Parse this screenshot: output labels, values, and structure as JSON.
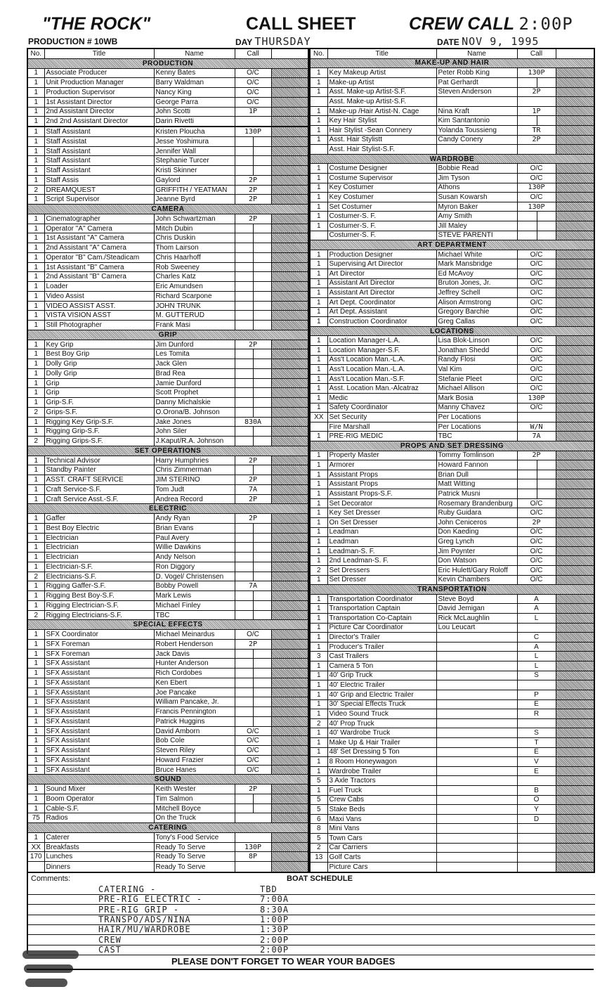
{
  "header": {
    "title": "\"THE ROCK\"",
    "production_label": "PRODUCTION # 10WB",
    "sheet_title": "CALL SHEET",
    "day_label": "DAY",
    "day_value": "THURSDAY",
    "crew_call_label": "CREW CALL",
    "crew_call_value": "2:00P",
    "date_label": "DATE",
    "date_value": "NOV 9, 1995"
  },
  "columns": {
    "no": "No.",
    "title": "Title",
    "name": "Name",
    "call": "Call"
  },
  "left": [
    {
      "section": "PRODUCTION",
      "rows": [
        [
          "1",
          "Associate Producer",
          "Kenny Bates",
          "O/C"
        ],
        [
          "1",
          "Unit Production Manager",
          "Barry Waldman",
          "O/C"
        ],
        [
          "1",
          "Production Supervisor",
          "Nancy King",
          "O/C"
        ],
        [
          "1",
          "1st Assistant Director",
          "George Parra",
          "O/C"
        ],
        [
          "1",
          "2nd Assistant Director",
          "John Scotti",
          "1P"
        ],
        [
          "1",
          "2nd 2nd Assistant Director",
          "Darin Rivetti",
          ""
        ],
        [
          "",
          "",
          "",
          ""
        ],
        [
          "1",
          "Staff Assistant",
          "Kristen Ploucha",
          "130P"
        ],
        [
          "1",
          "Staff Assistat",
          "Jesse Yoshimura",
          "|"
        ],
        [
          "1",
          "Staff Assistant",
          "Jennifer Wall",
          "|"
        ],
        [
          "1",
          "Staff Assistant",
          "Stephanie Turcer",
          "|"
        ],
        [
          "1",
          "Staff Assistant",
          "Kristi Skinner",
          "|"
        ],
        [
          "1",
          "Staff Assis",
          "Gaylord",
          "2P"
        ],
        [
          "2",
          "DREAMQUEST",
          "GRIFFITH / YEATMAN",
          "2P"
        ],
        [
          "1",
          "Script Supervisor",
          "Jeanne Byrd",
          "2P"
        ]
      ]
    },
    {
      "section": "CAMERA",
      "rows": [
        [
          "1",
          "Cinematographer",
          "John Schwartzman",
          "2P"
        ],
        [
          "1",
          "Operator \"A\" Camera",
          "Mitch Dubin",
          "|"
        ],
        [
          "1",
          "1st Assistant \"A\" Camera",
          "Chris Duskin",
          "|"
        ],
        [
          "1",
          "2nd Assistant \"A\" Camera",
          "Thom Lairson",
          "|"
        ],
        [
          "1",
          "Operator \"B\" Cam./Steadicam",
          "Chris Haarhoff",
          "|"
        ],
        [
          "1",
          "1st Assistant \"B\" Camera",
          "Rob Sweeney",
          "|"
        ],
        [
          "1",
          "2nd Assistant \"B\" Camera",
          "Charles Katz",
          "|"
        ],
        [
          "1",
          "Loader",
          "Eric Amundsen",
          "|"
        ],
        [
          "1",
          "Video Assist",
          "Richard Scarpone",
          "|"
        ],
        [
          "1",
          "VIDEO ASSIST ASST.",
          "JOHN TRUNK",
          "|"
        ],
        [
          "1",
          "VISTA VISION ASST",
          "M. GUTTERUD",
          "|"
        ],
        [
          "1",
          "Still Photographer",
          "Frank Masi",
          "|"
        ]
      ]
    },
    {
      "section": "GRIP",
      "rows": [
        [
          "1",
          "Key Grip",
          "Jim Dunford",
          "2P"
        ],
        [
          "1",
          "Best Boy Grip",
          "Les Tomita",
          "|"
        ],
        [
          "1",
          "Dolly Grip",
          "Jack Glen",
          "|"
        ],
        [
          "1",
          "Dolly Grip",
          "Brad Rea",
          "|"
        ],
        [
          "1",
          "Grip",
          "Jamie Dunford",
          "|"
        ],
        [
          "1",
          "Grip",
          "Scott Prophet",
          "|"
        ],
        [
          "1",
          "Grip-S.F.",
          "Danny Michalskie",
          "|"
        ],
        [
          "2",
          "Grips-S.F.",
          "O.Orona/B. Johnson",
          "|"
        ],
        [
          "1",
          "Rigging Key Grip-S.F.",
          "Jake Jones",
          "830A"
        ],
        [
          "1",
          "Rigging Grip-S.F.",
          "John Siler",
          "|"
        ],
        [
          "2",
          "Rigging Grips-S.F.",
          "J.Kaput/R.A. Johnson",
          "|"
        ]
      ]
    },
    {
      "section": "SET OPERATIONS",
      "rows": [
        [
          "1",
          "Technical Advisor",
          "Harry Humphries",
          "2P"
        ],
        [
          "1",
          "Standby Painter",
          "Chris Zimmerman",
          "|"
        ],
        [
          "1",
          "ASST. CRAFT SERVICE",
          "JIM STERINO",
          "2P"
        ],
        [
          "1",
          "Craft Service-S.F.",
          "Tom Judt",
          "7A"
        ],
        [
          "1",
          "Craft Service Asst.-S.F.",
          "Andrea Record",
          "2P"
        ]
      ]
    },
    {
      "section": "ELECTRIC",
      "rows": [
        [
          "1",
          "Gaffer",
          "Andy Ryan",
          "2P"
        ],
        [
          "1",
          "Best Boy Electric",
          "Brian Evans",
          "|"
        ],
        [
          "1",
          "Electrician",
          "Paul Avery",
          "|"
        ],
        [
          "1",
          "Electrician",
          "Willie Dawkins",
          "|"
        ],
        [
          "1",
          "Electrician",
          "Andy Nelson",
          "|"
        ],
        [
          "1",
          "Electrician-S.F.",
          "Ron Diggory",
          "|"
        ],
        [
          "2",
          "Electricians-S.F.",
          "D. Vogel/ Christensen",
          "|"
        ],
        [
          "1",
          "Rigging Gaffer-S.F.",
          "Bobby Powell",
          "7A"
        ],
        [
          "1",
          "Rigging Best Boy-S.F.",
          "Mark Lewis",
          "|"
        ],
        [
          "1",
          "Rigging Electrician-S.F.",
          "Michael Finley",
          "|"
        ],
        [
          "2",
          "Rigging Electricians-S.F.",
          "TBC",
          "|"
        ]
      ]
    },
    {
      "section": "SPECIAL EFFECTS",
      "rows": [
        [
          "1",
          "SFX Coordinator",
          "Michael Meinardus",
          "O/C"
        ],
        [
          "1",
          "SFX Foreman",
          "Robert Henderson",
          "2P"
        ],
        [
          "1",
          "SFX Foreman",
          "Jack Davis",
          "|"
        ],
        [
          "1",
          "SFX Assistant",
          "Hunter Anderson",
          "|"
        ],
        [
          "1",
          "SFX Assistant",
          "Rich Cordobes",
          "|"
        ],
        [
          "1",
          "SFX Assistant",
          "Ken Ebert",
          "|"
        ],
        [
          "1",
          "SFX Assistant",
          "Joe Pancake",
          "|"
        ],
        [
          "1",
          "SFX Assistant",
          "William Pancake, Jr.",
          "|"
        ],
        [
          "1",
          "SFX Assistant",
          "Francis Pennington",
          "|"
        ],
        [
          "1",
          "SFX Assistant",
          "Patrick Huggins",
          "|"
        ],
        [
          "1",
          "SFX Assistant",
          "David Amborn",
          "O/C"
        ],
        [
          "1",
          "SFX Assistant",
          "Bob Cole",
          "O/C"
        ],
        [
          "1",
          "SFX Assistant",
          "Steven Riley",
          "O/C"
        ],
        [
          "1",
          "SFX Assistant",
          "Howard Frazier",
          "O/C"
        ],
        [
          "1",
          "SFX Assistant",
          "Bruce Hanes",
          "O/C"
        ]
      ]
    },
    {
      "section": "SOUND",
      "rows": [
        [
          "1",
          "Sound Mixer",
          "Keith Wester",
          "2P"
        ],
        [
          "1",
          "Boom Operator",
          "Tim Salmon",
          "|"
        ],
        [
          "1",
          "Cable-S.F.",
          "Mitchell Boyce",
          "|"
        ],
        [
          "75",
          "Radios",
          "On the Truck",
          ""
        ]
      ]
    },
    {
      "section": "CATERING",
      "rows": [
        [
          "1",
          "Caterer",
          "Tony's Food Service",
          ""
        ],
        [
          "XX",
          "Breakfasts",
          "Ready To Serve",
          "130P"
        ],
        [
          "170",
          "Lunches",
          "Ready To Serve",
          "8P"
        ],
        [
          "",
          "Dinners",
          "Ready To Serve",
          ""
        ]
      ]
    }
  ],
  "right": [
    {
      "section": "MAKE-UP AND HAIR",
      "rows": [
        [
          "1",
          "Key Makeup Artist",
          "Peter Robb King",
          "130P"
        ],
        [
          "1",
          "Make-up Artist",
          "Pat Gerhardt",
          "|"
        ],
        [
          "1",
          "Asst. Make-up Artist-S.F.",
          "Steven Anderson",
          "2P"
        ],
        [
          "",
          "Asst. Make-up Artist-S.F.",
          "",
          ""
        ],
        [
          "1",
          "Make-up /Hair Artist-N. Cage",
          "Nina Kraft",
          "1P"
        ],
        [
          "1",
          "Key Hair Stylist",
          "Kim Santantonio",
          "|"
        ],
        [
          "1",
          "Hair Stylist -Sean Connery",
          "Yolanda Toussieng",
          "TR"
        ],
        [
          "1",
          "Asst. Hair Stylistt",
          "Candy Conery",
          "2P"
        ],
        [
          "",
          "Asst. Hair Stylist-S.F.",
          "",
          ""
        ]
      ]
    },
    {
      "section": "WARDROBE",
      "rows": [
        [
          "1",
          "Costume Designer",
          "Bobbie Read",
          "O/C"
        ],
        [
          "1",
          "Costume Supervisor",
          "Jim Tyson",
          "O/C"
        ],
        [
          "1",
          "Key Costumer",
          "Athons",
          "130P"
        ],
        [
          "1",
          "Key Costumer",
          "Susan Kowarsh",
          "O/C"
        ],
        [
          "1",
          "Set Costumer",
          "Myron Baker",
          "130P"
        ],
        [
          "1",
          "Costumer-S. F.",
          "Amy Smith",
          "|"
        ],
        [
          "1",
          "Costumer-S. F.",
          "Jill Maley",
          "|"
        ],
        [
          "",
          "Costumer-S. F.",
          "STEVE PARENTI",
          "|"
        ]
      ]
    },
    {
      "section": "ART DEPARTMENT",
      "rows": [
        [
          "1",
          "Production Designer",
          "Michael White",
          "O/C"
        ],
        [
          "1",
          "Supervising Art Director",
          "Mark Mansbridge",
          "O/C"
        ],
        [
          "1",
          "Art Director",
          "Ed McAvoy",
          "O/C"
        ],
        [
          "1",
          "Assistant Art Director",
          "Bruton Jones, Jr.",
          "O/C"
        ],
        [
          "1",
          "Assistant Art Director",
          "Jeffrey Schell",
          "O/C"
        ],
        [
          "1",
          "Art Dept. Coordinator",
          "Alison Armstrong",
          "O/C"
        ],
        [
          "1",
          "Art Dept. Assistant",
          "Gregory Barchie",
          "O/C"
        ],
        [
          "1",
          "Construction Coordinator",
          "Greg Callas",
          "O/C"
        ]
      ]
    },
    {
      "section": "LOCATIONS",
      "rows": [
        [
          "1",
          "Location Manager-L.A.",
          "Lisa Blok-Linson",
          "O/C"
        ],
        [
          "1",
          "Location Manager-S.F.",
          "Jonathan Shedd",
          "O/C"
        ],
        [
          "1",
          "Ass't Location Man.-L.A.",
          "Randy Flosi",
          "O/C"
        ],
        [
          "1",
          "Ass't Location Man.-L.A.",
          "Val Kim",
          "O/C"
        ],
        [
          "1",
          "Ass't Location Man.-S.F.",
          "Stefanie Pleet",
          "O/C"
        ],
        [
          "1",
          "Asst. Location Man.-Alcatraz",
          "Michael Allison",
          "O/C"
        ],
        [
          "1",
          "Medic",
          "Mark Bosia",
          "130P"
        ],
        [
          "1",
          "Safety Coordinator",
          "Manny Chavez",
          "O/C"
        ],
        [
          "XX",
          "Set Security",
          "Per Locations",
          ""
        ],
        [
          "",
          "Fire Marshall",
          "Per Locations",
          "W/N"
        ],
        [
          "1",
          "PRE-RIG MEDIC",
          "TBC",
          "7A"
        ]
      ]
    },
    {
      "section": "PROPS AND SET DRESSING",
      "rows": [
        [
          "1",
          "Property Master",
          "Tommy Tomlinson",
          "2P"
        ],
        [
          "1",
          "Armorer",
          "Howard Fannon",
          "|"
        ],
        [
          "1",
          "Assistant Props",
          "Brian Dull",
          "|"
        ],
        [
          "1",
          "Assistant Props",
          "Matt Witting",
          "|"
        ],
        [
          "1",
          "Assistant Props-S.F.",
          "Patrick Musni",
          "|"
        ],
        [
          "1",
          "Set Decorator",
          "Rosemary Brandenburg",
          "O/C"
        ],
        [
          "1",
          "Key Set Dresser",
          "Ruby Guidara",
          "O/C"
        ],
        [
          "1",
          "On Set Dresser",
          "John Ceniceros",
          "2P"
        ],
        [
          "1",
          "Leadman",
          "Don Kaeding",
          "O/C"
        ],
        [
          "1",
          "Leadman",
          "Greg Lynch",
          "O/C"
        ],
        [
          "1",
          "Leadman-S. F.",
          "Jim Poynter",
          "O/C"
        ],
        [
          "1",
          "2nd Leadman-S. F.",
          "Don Watson",
          "O/C"
        ],
        [
          "2",
          "Set Dressers",
          "Eric Hulett/Gary Roloff",
          "O/C"
        ],
        [
          "1",
          "Set Dresser",
          "Kevin Chambers",
          "O/C"
        ]
      ]
    },
    {
      "section": "TRANSPORTATION",
      "rows": [
        [
          "1",
          "Transportation Coordinator",
          "Steve Boyd",
          "A"
        ],
        [
          "1",
          "Transportation Captain",
          "David Jemigan",
          "A"
        ],
        [
          "1",
          "Transportation Co-Captain",
          "Rick McLaughlin",
          "L"
        ],
        [
          "1",
          "Picture Car Coordinator",
          "Lou Leucart",
          ""
        ],
        [
          "1",
          "Director's Trailer",
          "",
          "C"
        ],
        [
          "1",
          "Producer's Trailer",
          "",
          "A"
        ],
        [
          "3",
          "Cast Trailers",
          "",
          "L"
        ],
        [
          "1",
          "Camera 5 Ton",
          "",
          "L"
        ],
        [
          "1",
          "40' Grip Truck",
          "",
          "S"
        ],
        [
          "1",
          "40' Electric Trailer",
          "",
          ""
        ],
        [
          "1",
          "40' Grip and Electric Trailer",
          "",
          "P"
        ],
        [
          "1",
          "30' Special Effects Truck",
          "",
          "E"
        ],
        [
          "1",
          "Video Sound Truck",
          "",
          "R"
        ],
        [
          "2",
          "40' Prop Truck",
          "",
          ""
        ],
        [
          "1",
          "40' Wardrobe Truck",
          "",
          "S"
        ],
        [
          "1",
          "Make Up & Hair Trailer",
          "",
          "T"
        ],
        [
          "1",
          "48' Set Dressing 5 Ton",
          "",
          "E"
        ],
        [
          "1",
          "8 Room Honeywagon",
          "",
          "V"
        ],
        [
          "1",
          "Wardrobe Trailer",
          "",
          "E"
        ],
        [
          "5",
          "3 Axle Tractors",
          "",
          ""
        ],
        [
          "1",
          "Fuel Truck",
          "",
          "B"
        ],
        [
          "5",
          "Crew Cabs",
          "",
          "O"
        ],
        [
          "5",
          "Stake Beds",
          "",
          "Y"
        ],
        [
          "6",
          "Maxi Vans",
          "",
          "D"
        ],
        [
          "8",
          "Mini Vans",
          "",
          ""
        ],
        [
          "5",
          "Town Cars",
          "",
          ""
        ],
        [
          "2",
          "Car Carriers",
          "",
          ""
        ],
        [
          "13",
          "Golf Carts",
          "",
          ""
        ],
        [
          "",
          "Picture Cars",
          "",
          ""
        ]
      ]
    }
  ],
  "comments": {
    "label": "Comments:",
    "boat_label": "BOAT SCHEDULE",
    "lines": [
      [
        "CATERING -",
        "TBD"
      ],
      [
        "PRE-RIG ELECTRIC -",
        "7:00A"
      ],
      [
        "PRE-RIG GRIP -",
        "8:30A"
      ],
      [
        "TRANSPO/ADS/NINA",
        "1:00P"
      ],
      [
        "HAIR/MU/WARDROBE",
        "1:30P"
      ],
      [
        "CREW",
        "2:00P"
      ],
      [
        "CAST",
        "2:00P"
      ]
    ]
  },
  "footer": "PLEASE DON'T FORGET TO WEAR YOUR BADGES"
}
